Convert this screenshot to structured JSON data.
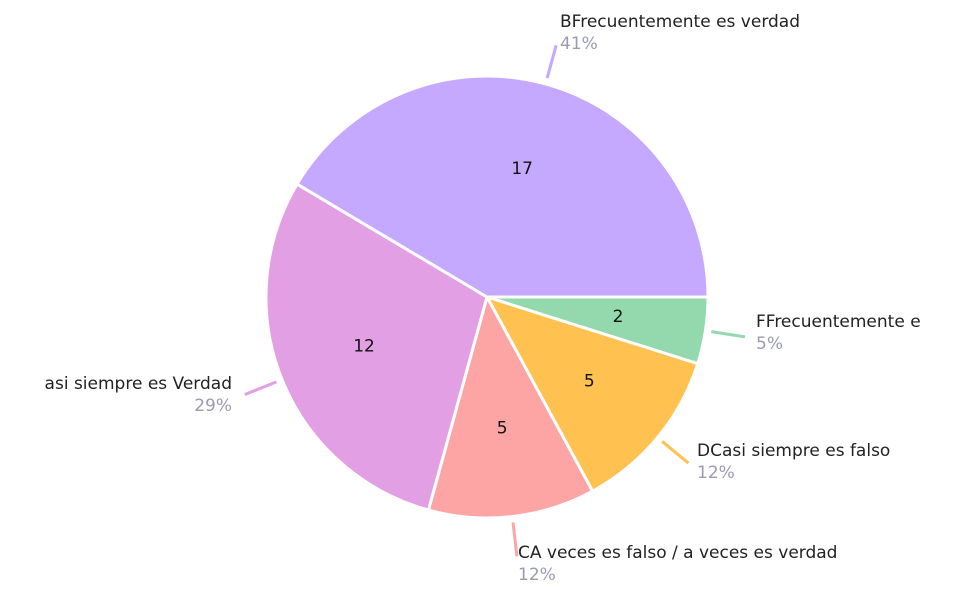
{
  "chart_data": {
    "type": "pie",
    "categories": [
      "FFrecuentemente e",
      "DCasi siempre es falso",
      "CA veces es falso / a veces es verdad",
      "asi siempre es Verdad",
      "BFrecuentemente es verdad"
    ],
    "values": [
      2,
      5,
      5,
      12,
      17
    ],
    "percent_labels": [
      "5%",
      "12%",
      "12%",
      "29%",
      "41%"
    ],
    "colors": [
      "#93d9ad",
      "#ffc150",
      "#fda4a4",
      "#e29fe4",
      "#c5a8ff"
    ]
  }
}
